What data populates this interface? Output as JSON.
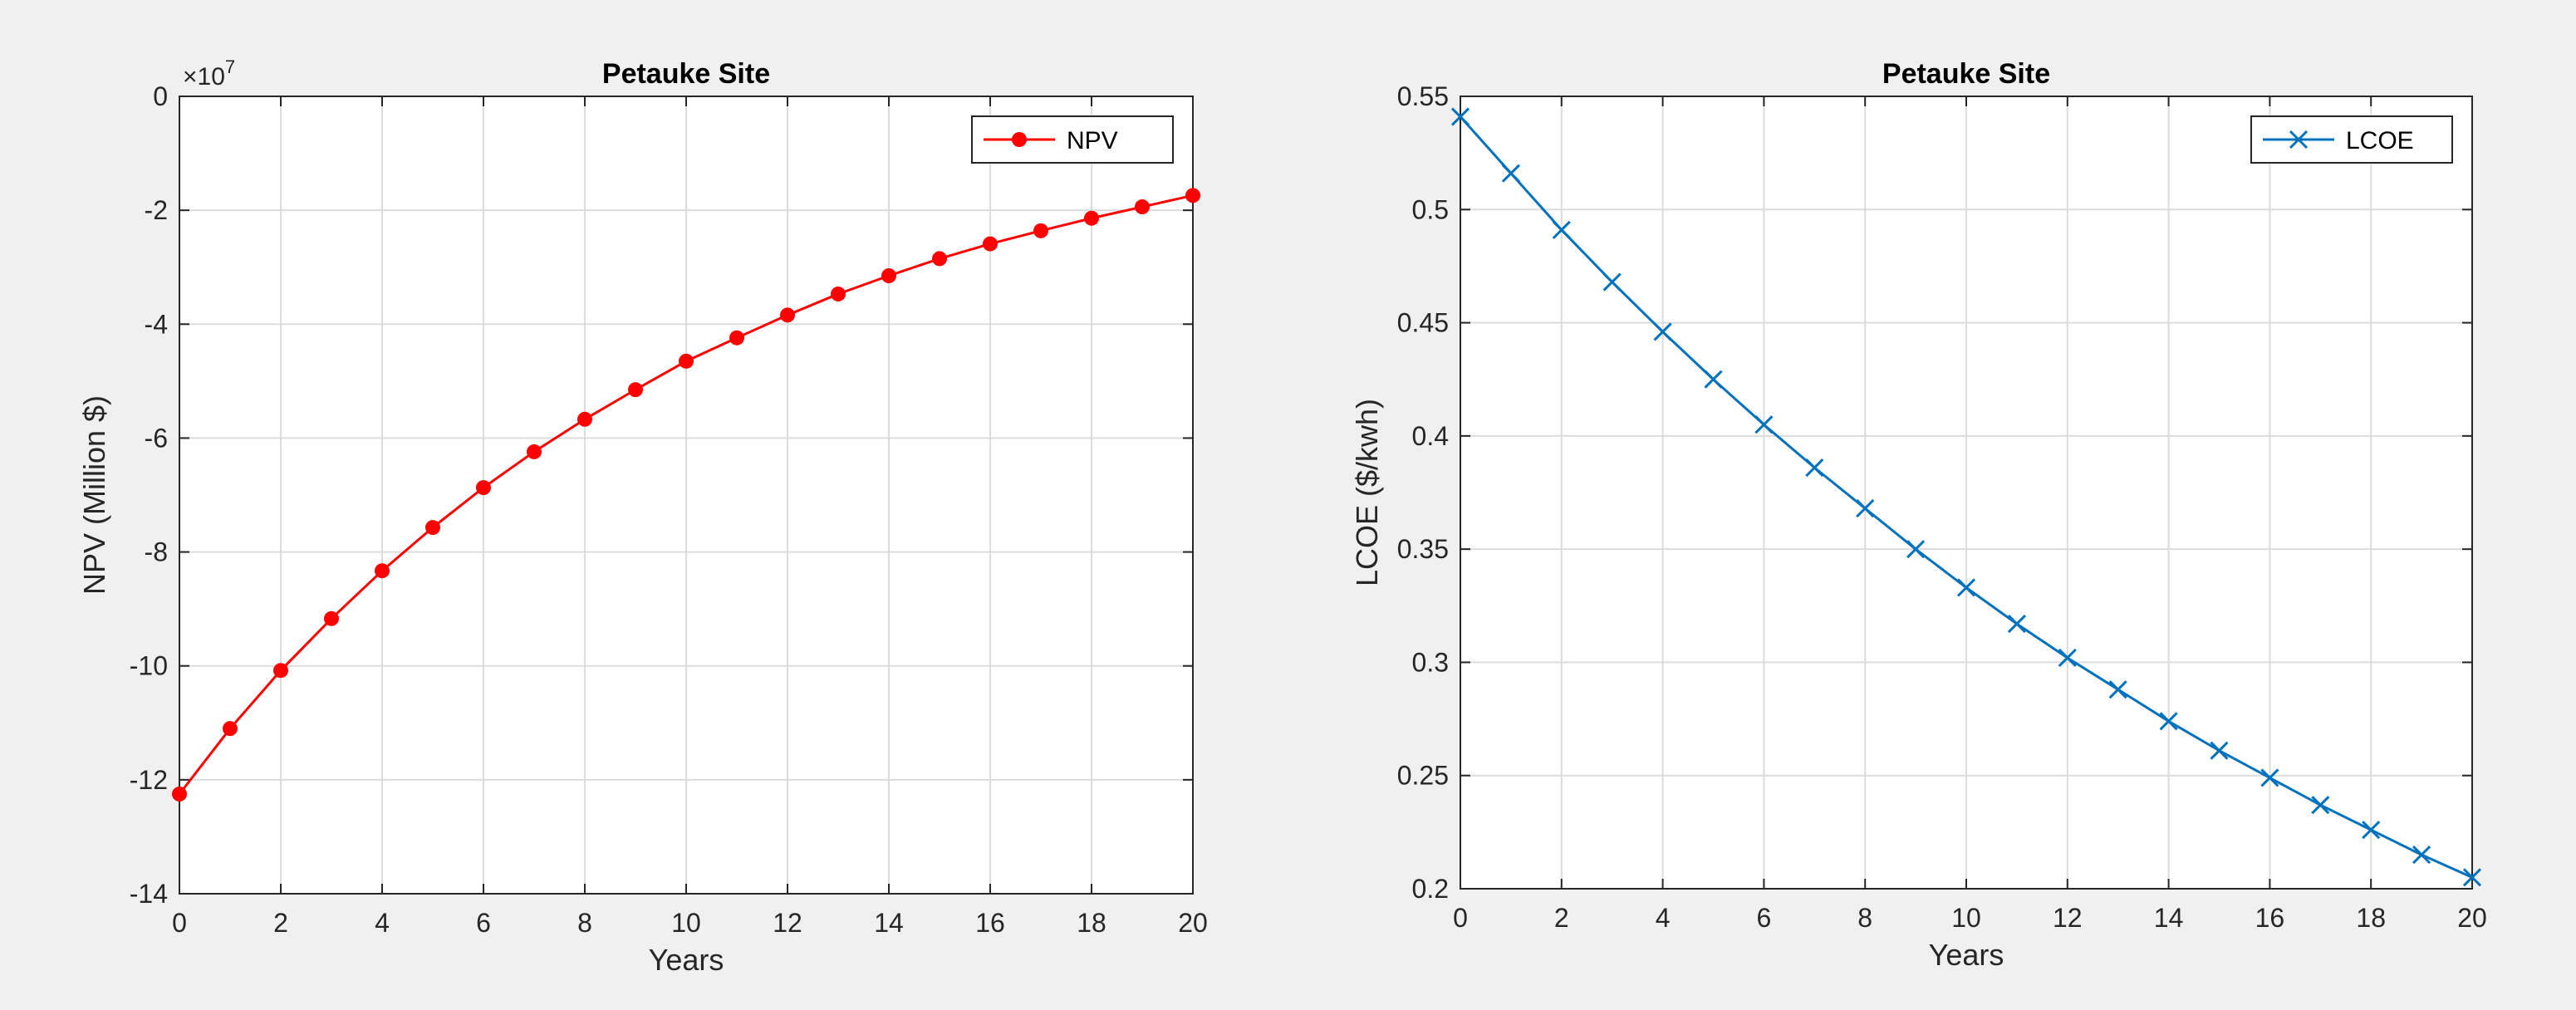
{
  "chart_data": [
    {
      "type": "line",
      "title": "Petauke Site",
      "xlabel": "Years",
      "ylabel": "NPV (Million $)",
      "y_exponent_label": "×10",
      "y_exponent": "7",
      "xlim": [
        0,
        20
      ],
      "ylim": [
        -14,
        0
      ],
      "xticks": [
        0,
        2,
        4,
        6,
        8,
        10,
        12,
        14,
        16,
        18,
        20
      ],
      "yticks": [
        0,
        -2,
        -4,
        -6,
        -8,
        -10,
        -12,
        -14
      ],
      "grid": true,
      "legend_position": "top-right",
      "series": [
        {
          "name": "NPV",
          "color": "#ff0000",
          "marker": "dot",
          "x": [
            0,
            1,
            2,
            3,
            4,
            5,
            6,
            7,
            8,
            9,
            10,
            11,
            12,
            13,
            14,
            15,
            16,
            17,
            18,
            19,
            20
          ],
          "y": [
            -12.25,
            -11.1,
            -10.08,
            -9.17,
            -8.33,
            -7.57,
            -6.87,
            -6.24,
            -5.67,
            -5.15,
            -4.65,
            -4.24,
            -3.84,
            -3.47,
            -3.15,
            -2.85,
            -2.59,
            -2.36,
            -2.14,
            -1.94,
            -1.74
          ]
        }
      ]
    },
    {
      "type": "line",
      "title": "Petauke Site",
      "xlabel": "Years",
      "ylabel": "LCOE ($/kwh)",
      "xlim": [
        0,
        20
      ],
      "ylim": [
        0.2,
        0.55
      ],
      "xticks": [
        0,
        2,
        4,
        6,
        8,
        10,
        12,
        14,
        16,
        18,
        20
      ],
      "yticks": [
        0.55,
        0.5,
        0.45,
        0.4,
        0.35,
        0.3,
        0.25,
        0.2
      ],
      "grid": true,
      "legend_position": "top-right",
      "series": [
        {
          "name": "LCOE",
          "color": "#0072bd",
          "marker": "x",
          "x": [
            0,
            1,
            2,
            3,
            4,
            5,
            6,
            7,
            8,
            9,
            10,
            11,
            12,
            13,
            14,
            15,
            16,
            17,
            18,
            19,
            20
          ],
          "y": [
            0.541,
            0.516,
            0.491,
            0.468,
            0.446,
            0.425,
            0.405,
            0.386,
            0.368,
            0.35,
            0.333,
            0.317,
            0.302,
            0.288,
            0.274,
            0.261,
            0.249,
            0.237,
            0.226,
            0.215,
            0.205
          ]
        }
      ]
    }
  ]
}
